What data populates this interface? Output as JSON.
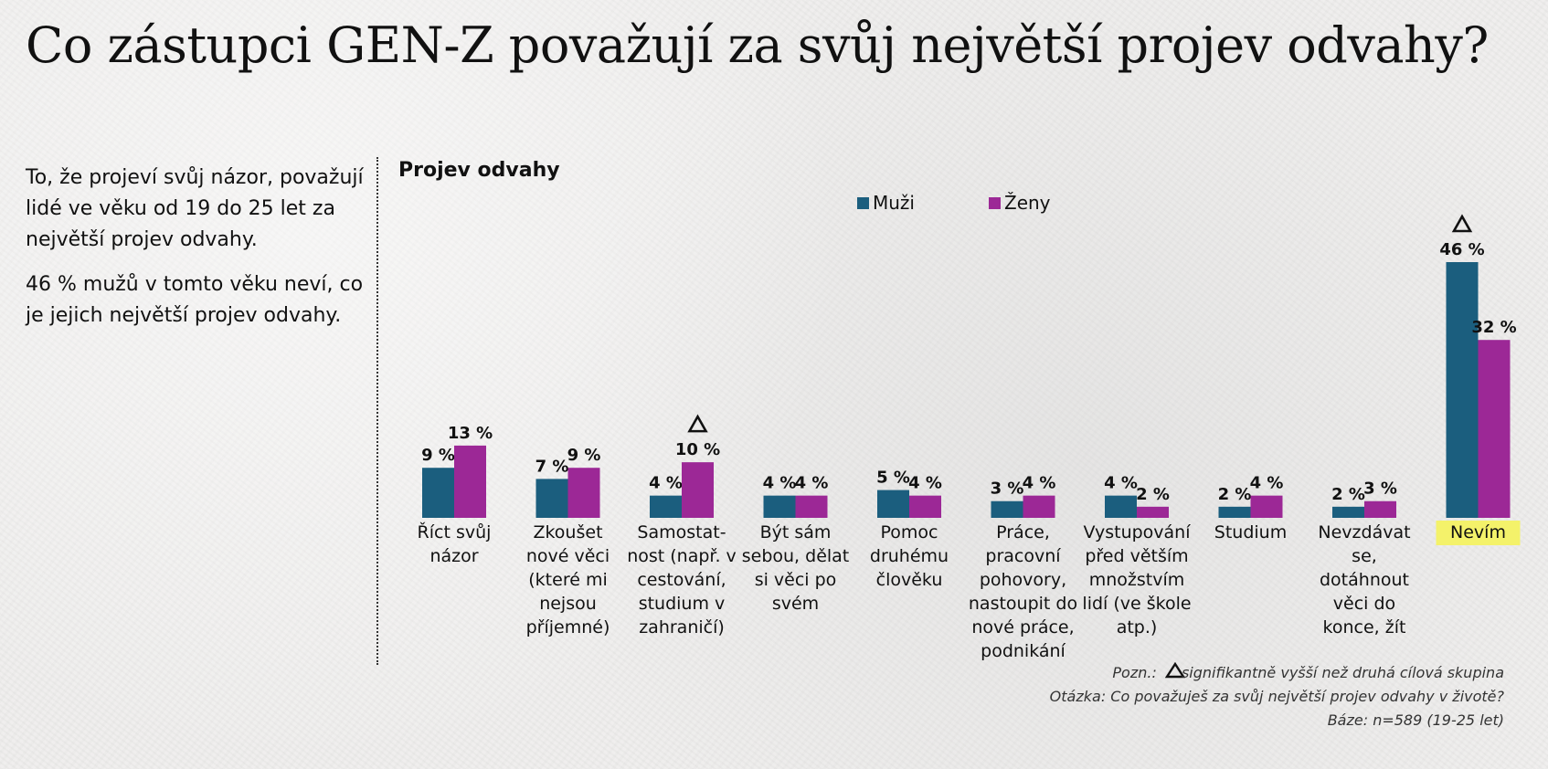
{
  "title": "Co zástupci GEN-Z považují za svůj největší projev odvahy?",
  "side_text": [
    "To, že projeví svůj názor, považují lidé ve věku od 19 do 25 let za největší projev odvahy.",
    "46 % mužů v tomto věku neví, co je jejich největší projev odvahy."
  ],
  "colors": {
    "muzi": "#1b5e7e",
    "zeny": "#9c2896",
    "highlight": "#f4f26a"
  },
  "chart_data": {
    "type": "bar",
    "title": "Projev odvahy",
    "legend_position": "top",
    "categories": [
      [
        "Říct svůj",
        "názor"
      ],
      [
        "Zkoušet",
        "nové věci",
        "(které mi",
        "nejsou",
        "příjemné)"
      ],
      [
        "Samostat-",
        "nost (např. v",
        "cestování,",
        "studium v",
        "zahraničí)"
      ],
      [
        "Být sám",
        "sebou, dělat",
        "si věci po",
        "svém"
      ],
      [
        "Pomoc",
        "druhému",
        "člověku"
      ],
      [
        "Práce,",
        "pracovní",
        "pohovory,",
        "nastoupit do",
        "nové práce,",
        "podnikání"
      ],
      [
        "Vystupování",
        "před větším",
        "množstvím",
        "lidí (ve škole",
        "atp.)"
      ],
      [
        "Studium"
      ],
      [
        "Nevzdávat",
        "se,",
        "dotáhnout",
        "věci do",
        "konce, žít"
      ],
      [
        "Nevím"
      ]
    ],
    "highlighted_category": 9,
    "series": [
      {
        "name": "Muži",
        "values": [
          9,
          7,
          4,
          4,
          5,
          3,
          4,
          2,
          2,
          46
        ],
        "labels": [
          "9 %",
          "7 %",
          "4 %",
          "4 %",
          "5 %",
          "3 %",
          "4 %",
          "2 %",
          "2 %",
          "46 %"
        ]
      },
      {
        "name": "Ženy",
        "values": [
          13,
          9,
          10,
          4,
          4,
          4,
          2,
          4,
          3,
          32
        ],
        "labels": [
          "13 %",
          "9 %",
          "10 %",
          "4 %",
          "4 %",
          "4 %",
          "2 %",
          "4 %",
          "3 %",
          "32 %"
        ]
      }
    ],
    "significant": [
      {
        "category": 2,
        "series": 1
      },
      {
        "category": 9,
        "series": 0
      }
    ],
    "ylim": [
      0,
      46
    ]
  },
  "footer": {
    "note_label": "Pozn.:",
    "note_text": "signifikantně vyšší než druhá cílová skupina",
    "question": "Otázka: Co považuješ za svůj největší projev odvahy v životě?",
    "base": "Báze: n=589 (19-25 let)"
  }
}
